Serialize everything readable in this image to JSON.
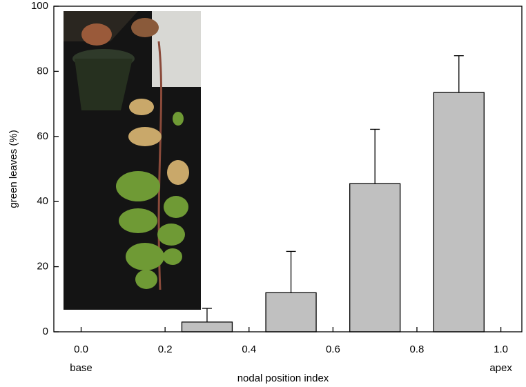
{
  "chart_data": {
    "type": "bar",
    "xlabel": "nodal position index",
    "ylabel": "green leaves (%)",
    "x": [
      0.3,
      0.5,
      0.7,
      0.9
    ],
    "values": [
      3,
      12,
      45.5,
      73.5
    ],
    "errors": [
      4.2,
      12.7,
      16.7,
      11.3
    ],
    "color": "#c0c0c0",
    "xlim": [
      -0.065,
      1.05
    ],
    "ylim": [
      0,
      100
    ],
    "xticks": [
      {
        "value": 0,
        "label": "0.0"
      },
      {
        "value": 0.2,
        "label": "0.2"
      },
      {
        "value": 0.4,
        "label": "0.4"
      },
      {
        "value": 0.6,
        "label": "0.6"
      },
      {
        "value": 0.8,
        "label": "0.8"
      },
      {
        "value": 1,
        "label": "1.0"
      }
    ],
    "yticks": [
      0,
      20,
      40,
      60,
      80,
      100
    ],
    "annotations": [
      {
        "text": "base",
        "x": 0
      },
      {
        "text": "apex",
        "x": 1
      }
    ]
  }
}
